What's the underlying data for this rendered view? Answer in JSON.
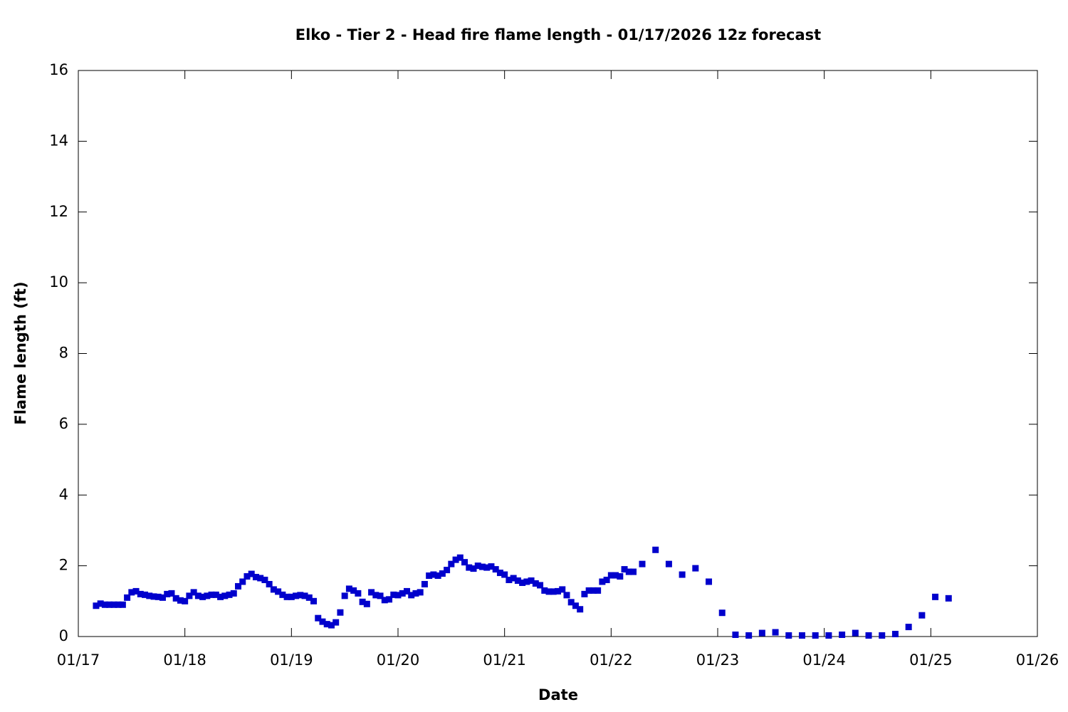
{
  "chart_data": {
    "type": "scatter",
    "title": "Elko - Tier 2 - Head fire flame length - 01/17/2026 12z forecast",
    "x_label": "Date",
    "y_label": "Flame length (ft)",
    "series": [
      {
        "name": "Head fire flame length",
        "color": "#0000cc",
        "x": [
          4,
          5,
          6,
          7,
          8,
          9,
          10,
          11,
          12,
          13,
          14,
          15,
          16,
          17,
          18,
          19,
          20,
          21,
          22,
          23,
          24,
          25,
          26,
          27,
          28,
          29,
          30,
          31,
          32,
          33,
          34,
          35,
          36,
          37,
          38,
          39,
          40,
          41,
          42,
          43,
          44,
          45,
          46,
          47,
          48,
          49,
          50,
          51,
          52,
          53,
          54,
          55,
          56,
          57,
          58,
          59,
          60,
          61,
          62,
          63,
          64,
          65,
          66,
          67,
          68,
          69,
          70,
          71,
          72,
          73,
          74,
          75,
          76,
          77,
          78,
          79,
          80,
          81,
          82,
          83,
          84,
          85,
          86,
          87,
          88,
          89,
          90,
          91,
          92,
          93,
          94,
          95,
          96,
          97,
          98,
          99,
          100,
          101,
          102,
          103,
          104,
          105,
          106,
          107,
          108,
          109,
          110,
          111,
          112,
          113,
          114,
          115,
          116,
          117,
          118,
          119,
          120,
          121,
          122,
          123,
          124,
          125,
          127,
          130,
          133,
          136,
          139,
          142,
          145,
          148,
          151,
          154,
          157,
          160,
          163,
          166,
          169,
          172,
          175,
          178,
          181,
          184,
          187,
          190,
          193,
          196
        ],
        "values": [
          0.87,
          0.93,
          0.9,
          0.9,
          0.9,
          0.9,
          0.9,
          1.1,
          1.25,
          1.28,
          1.2,
          1.18,
          1.15,
          1.13,
          1.12,
          1.1,
          1.2,
          1.22,
          1.08,
          1.02,
          1.0,
          1.15,
          1.25,
          1.15,
          1.12,
          1.15,
          1.18,
          1.18,
          1.12,
          1.15,
          1.18,
          1.22,
          1.42,
          1.55,
          1.7,
          1.77,
          1.68,
          1.65,
          1.6,
          1.48,
          1.33,
          1.27,
          1.18,
          1.12,
          1.12,
          1.15,
          1.17,
          1.15,
          1.1,
          1.0,
          0.52,
          0.42,
          0.35,
          0.32,
          0.4,
          0.68,
          1.15,
          1.35,
          1.3,
          1.22,
          0.98,
          0.92,
          1.25,
          1.17,
          1.15,
          1.03,
          1.05,
          1.18,
          1.17,
          1.22,
          1.28,
          1.17,
          1.22,
          1.25,
          1.48,
          1.72,
          1.75,
          1.72,
          1.78,
          1.88,
          2.05,
          2.17,
          2.23,
          2.1,
          1.95,
          1.92,
          2.0,
          1.97,
          1.95,
          1.98,
          1.9,
          1.8,
          1.75,
          1.6,
          1.65,
          1.58,
          1.52,
          1.55,
          1.58,
          1.5,
          1.45,
          1.3,
          1.27,
          1.27,
          1.28,
          1.33,
          1.17,
          0.97,
          0.87,
          0.77,
          1.2,
          1.3,
          1.3,
          1.3,
          1.55,
          1.6,
          1.73,
          1.73,
          1.7,
          1.9,
          1.83,
          1.83,
          2.05,
          2.45,
          2.05,
          1.75,
          1.93,
          1.55,
          0.67,
          0.05,
          0.03,
          0.1,
          0.12,
          0.03,
          0.03,
          0.03,
          0.03,
          0.05,
          0.1,
          0.03,
          0.03,
          0.07,
          0.27,
          0.6,
          1.12,
          1.08
        ]
      }
    ],
    "xlim": [
      0,
      216
    ],
    "xticks": [
      {
        "value": 0,
        "label": "01/17"
      },
      {
        "value": 24,
        "label": "01/18"
      },
      {
        "value": 48,
        "label": "01/19"
      },
      {
        "value": 72,
        "label": "01/20"
      },
      {
        "value": 96,
        "label": "01/21"
      },
      {
        "value": 120,
        "label": "01/22"
      },
      {
        "value": 144,
        "label": "01/23"
      },
      {
        "value": 168,
        "label": "01/24"
      },
      {
        "value": 192,
        "label": "01/25"
      },
      {
        "value": 216,
        "label": "01/26"
      }
    ],
    "ylim": [
      0,
      16
    ],
    "yticks": [
      0,
      2,
      4,
      6,
      8,
      10,
      12,
      14,
      16
    ],
    "grid": false
  }
}
